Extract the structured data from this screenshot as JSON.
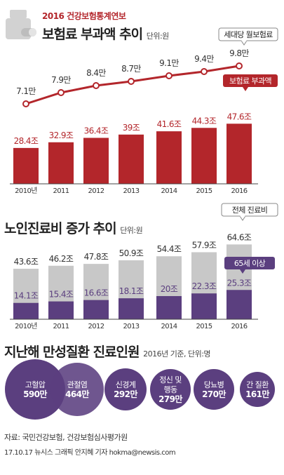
{
  "header": {
    "subtitle": "2016 건강보험통계연보"
  },
  "chart1": {
    "title": "보험료 부과액 추이",
    "unit": "단위:원",
    "callout_line": "세대당 월보험료",
    "callout_bar": "보험료 부과액"
  },
  "chart2": {
    "title": "노인진료비 증가 추이",
    "unit": "단위:원",
    "callout_total": "전체 진료비",
    "callout_senior": "65세 이상"
  },
  "chart3": {
    "title": "지난해 만성질환 진료인원",
    "unit": "2016년 기준, 단위:명"
  },
  "footer": {
    "source": "자료: 국민건강보험, 건강보험심사평가원",
    "credit": "17.10.17 뉴시스 그래픽 안지혜 기자 hokma@newsis.com"
  },
  "colors": {
    "red": "#b3262b",
    "purple": "#5b3f7f",
    "gray": "#c8c8c8"
  },
  "chart_data": [
    {
      "type": "bar",
      "categories": [
        "2010년",
        "2011",
        "2012",
        "2013",
        "2014",
        "2015",
        "2016"
      ],
      "series": [
        {
          "name": "보험료 부과액",
          "values": [
            28.4,
            32.9,
            36.4,
            39.0,
            41.6,
            44.3,
            47.6
          ],
          "labels": [
            "28.4조",
            "32.9조",
            "36.4조",
            "39조",
            "41.6조",
            "44.3조",
            "47.6조"
          ]
        },
        {
          "name": "세대당 월보험료",
          "type": "line",
          "values": [
            7.1,
            7.9,
            8.4,
            8.7,
            9.1,
            9.4,
            9.8
          ],
          "labels": [
            "7.1만",
            "7.9만",
            "8.4만",
            "8.7만",
            "9.1만",
            "9.4만",
            "9.8만"
          ]
        }
      ]
    },
    {
      "type": "bar",
      "categories": [
        "2010년",
        "2011",
        "2012",
        "2013",
        "2014",
        "2015",
        "2016"
      ],
      "series": [
        {
          "name": "전체 진료비",
          "values": [
            43.6,
            46.2,
            47.8,
            50.9,
            54.4,
            57.9,
            64.6
          ],
          "labels": [
            "43.6조",
            "46.2조",
            "47.8조",
            "50.9조",
            "54.4조",
            "57.9조",
            "64.6조"
          ]
        },
        {
          "name": "65세 이상",
          "values": [
            14.1,
            15.4,
            16.6,
            18.1,
            20.0,
            22.3,
            25.3
          ],
          "labels": [
            "14.1조",
            "15.4조",
            "16.6조",
            "18.1조",
            "20조",
            "22.3조",
            "25.3조"
          ]
        }
      ]
    },
    {
      "type": "bubble",
      "items": [
        {
          "name": "고혈압",
          "value": 590,
          "label": "590만"
        },
        {
          "name": "관절염",
          "value": 464,
          "label": "464만"
        },
        {
          "name": "신경계",
          "value": 292,
          "label": "292만"
        },
        {
          "name": "정신 및\n행동",
          "value": 279,
          "label": "279만"
        },
        {
          "name": "당뇨병",
          "value": 270,
          "label": "270만"
        },
        {
          "name": "간 질환",
          "value": 161,
          "label": "161만"
        }
      ]
    }
  ]
}
